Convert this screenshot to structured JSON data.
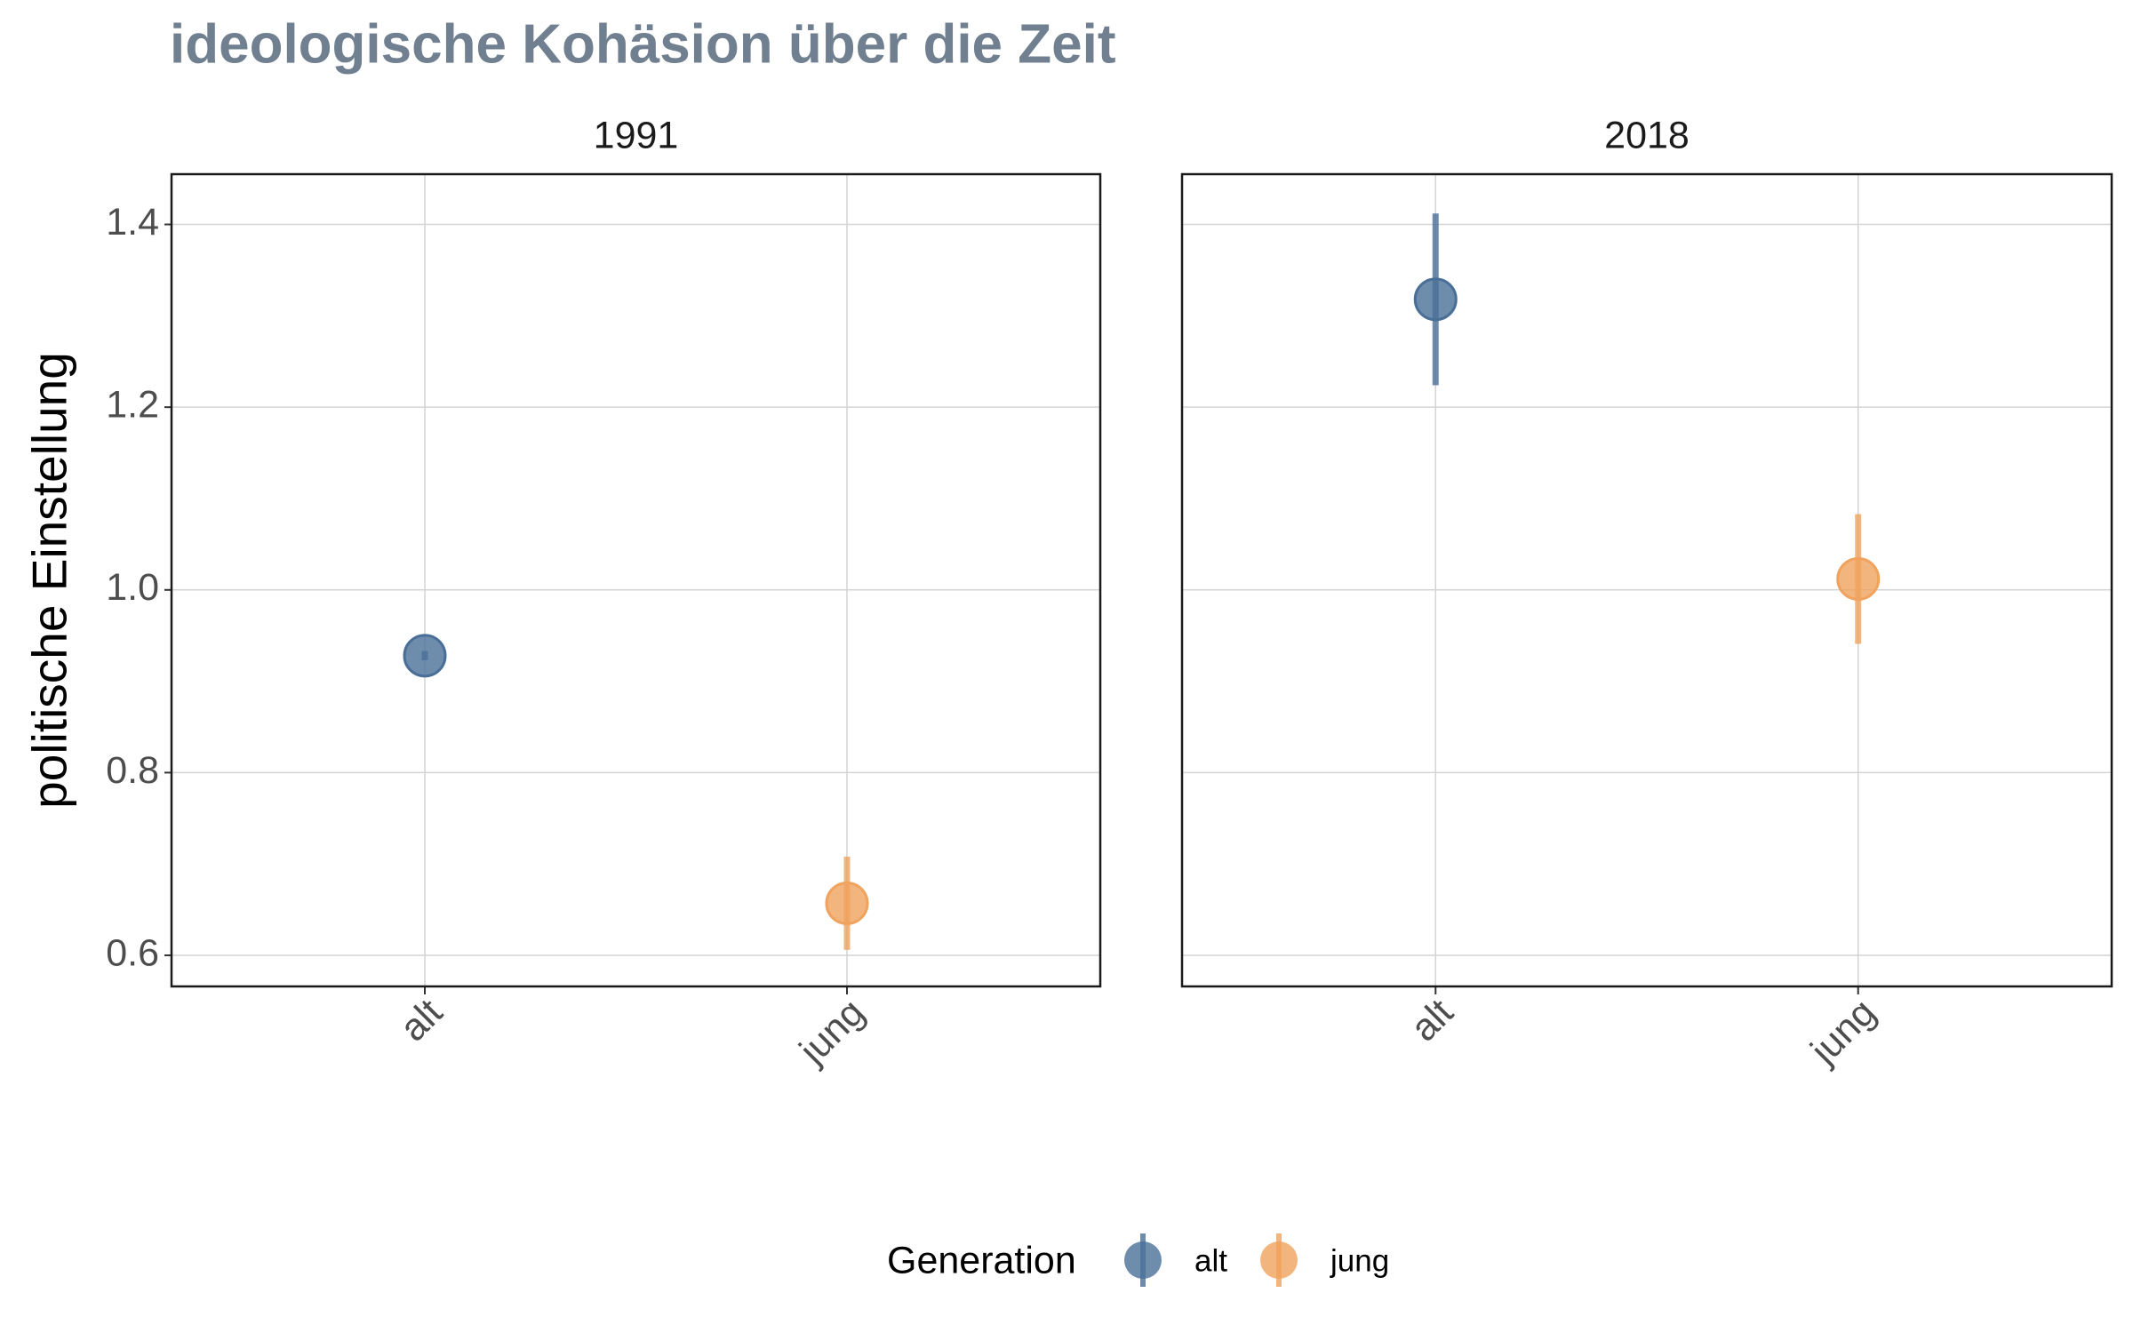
{
  "chart_data": {
    "type": "errorbar",
    "title": "ideologische Kohäsion über die Zeit",
    "y_label": "politische Einstellung",
    "legend_title": "Generation",
    "categories": [
      "alt",
      "jung"
    ],
    "colors": [
      "#4a6f97",
      "#f0a35e"
    ],
    "ylim": [
      0.566,
      1.455
    ],
    "yticks": [
      0.6,
      0.8,
      {
        "value": 1,
        "label": "1.0"
      },
      1.2,
      1.4
    ],
    "grid": true,
    "facets": [
      {
        "title": "1991",
        "values": [
          0.928,
          0.657
        ],
        "errors": [
          0.005,
          0.051
        ]
      },
      {
        "title": "2018",
        "values": [
          1.318,
          1.012
        ],
        "errors": [
          0.094,
          0.071
        ]
      }
    ]
  }
}
